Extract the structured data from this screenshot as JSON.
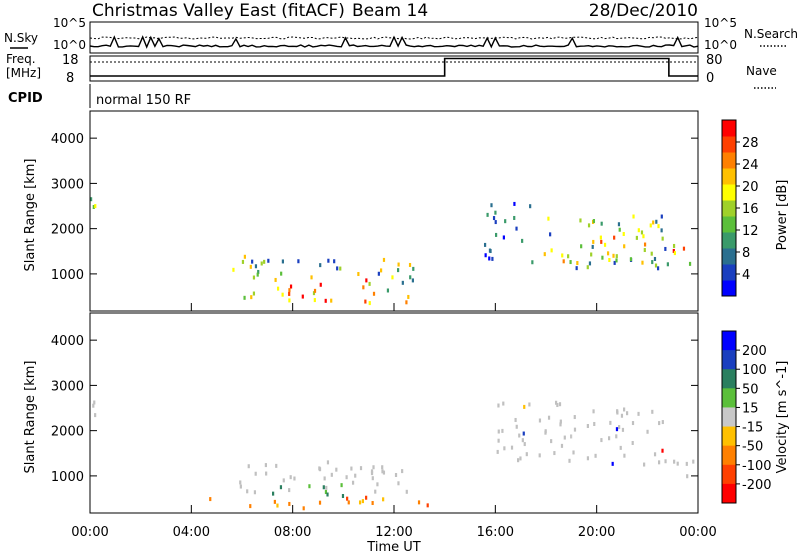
{
  "header": {
    "station": "Christmas Valley East (fitACF)",
    "beam": "Beam 14",
    "date": "28/Dec/2010"
  },
  "noise_panel": {
    "left_label": "N.Sky",
    "right_label": "N.Search",
    "left_ticks": [
      "10^5",
      "10^0"
    ],
    "right_ticks": [
      "10^5",
      "10^0"
    ]
  },
  "freq_panel": {
    "left_label_line1": "Freq.",
    "left_label_line2": "[MHz]",
    "right_label": "Nave",
    "left_ticks": [
      "18",
      "8"
    ],
    "right_ticks": [
      "80",
      "0"
    ],
    "freq_profile": [
      [
        0,
        14.0,
        10.0
      ],
      [
        14.0,
        22.85,
        17.0
      ],
      [
        22.85,
        24.0,
        10.0
      ]
    ]
  },
  "cpid": {
    "label": "CPID",
    "program": "normal 150 RF"
  },
  "colors": {
    "power": [
      "#0000ff",
      "#1a3fbf",
      "#2a6f8f",
      "#3a9a6a",
      "#5bbf3a",
      "#9fd12a",
      "#ffff00",
      "#ffc000",
      "#ff8000",
      "#ff4000",
      "#ff0000"
    ],
    "velocity": [
      "#0000ff",
      "#1a3fbf",
      "#2a7f5f",
      "#5bbf3a",
      "#c8c8c8",
      "#ffc000",
      "#ff8000",
      "#ff4000",
      "#ff0000"
    ],
    "ground_scatter": "#c0c0c0"
  },
  "chart_data": [
    {
      "type": "heatmap",
      "title": "",
      "xlabel": "",
      "ylabel": "Slant Range [km]",
      "x_ticks": [
        "00:00",
        "04:00",
        "08:00",
        "12:00",
        "16:00",
        "20:00",
        "00:00"
      ],
      "xlim_hours": [
        0,
        24
      ],
      "ylim_km": [
        180,
        4600
      ],
      "y_ticks": [
        1000,
        2000,
        3000,
        4000
      ],
      "colorbar": {
        "label": "Power [dB]",
        "range": [
          0,
          32
        ],
        "ticks": [
          4,
          8,
          12,
          16,
          20,
          24,
          28
        ]
      },
      "regions": [
        {
          "t0": 0.0,
          "t1": 0.5,
          "r0": 1800,
          "r1": 2700,
          "value": "mid"
        },
        {
          "t0": 4.8,
          "t1": 7.0,
          "r0": 900,
          "r1": 1400,
          "value": "mid"
        },
        {
          "t0": 6.0,
          "t1": 11.5,
          "r0": 300,
          "r1": 900,
          "value": "high"
        },
        {
          "t0": 6.5,
          "t1": 11.0,
          "r0": 900,
          "r1": 1300,
          "value": "mid"
        },
        {
          "t0": 11.0,
          "t1": 12.8,
          "r0": 400,
          "r1": 1300,
          "value": "mid"
        },
        {
          "t0": 12.0,
          "t1": 13.0,
          "r0": 300,
          "r1": 600,
          "value": "high"
        },
        {
          "t0": 15.5,
          "t1": 17.5,
          "r0": 1200,
          "r1": 2600,
          "value": "low"
        },
        {
          "t0": 17.5,
          "t1": 22.8,
          "r0": 1100,
          "r1": 2300,
          "value": "mid"
        },
        {
          "t0": 18.5,
          "t1": 22.0,
          "r0": 1200,
          "r1": 1800,
          "value": "high"
        },
        {
          "t0": 23.0,
          "t1": 24.0,
          "r0": 900,
          "r1": 1600,
          "value": "high"
        }
      ]
    },
    {
      "type": "heatmap",
      "title": "",
      "xlabel": "Time UT",
      "ylabel": "Slant Range [km]",
      "x_ticks": [
        "00:00",
        "04:00",
        "08:00",
        "12:00",
        "16:00",
        "20:00",
        "00:00"
      ],
      "xlim_hours": [
        0,
        24
      ],
      "ylim_km": [
        180,
        4600
      ],
      "y_ticks": [
        1000,
        2000,
        3000,
        4000
      ],
      "colorbar": {
        "label": "Velocity [m s^-1]",
        "ticks": [
          "200",
          "100",
          "50",
          "15",
          "-15",
          "-50",
          "-100",
          "-200"
        ]
      },
      "regions": [
        {
          "t0": 0.0,
          "t1": 0.5,
          "r0": 2000,
          "r1": 2700,
          "value": "gs"
        },
        {
          "t0": 5.0,
          "t1": 12.5,
          "r0": 600,
          "r1": 1300,
          "value": "gs"
        },
        {
          "t0": 4.5,
          "t1": 13.5,
          "r0": 250,
          "r1": 500,
          "value": "neg"
        },
        {
          "t0": 7.0,
          "t1": 10.5,
          "r0": 500,
          "r1": 800,
          "value": "pos"
        },
        {
          "t0": 16.0,
          "t1": 23.0,
          "r0": 1200,
          "r1": 2600,
          "value": "gs"
        },
        {
          "t0": 23.0,
          "t1": 24.0,
          "r0": 900,
          "r1": 1600,
          "value": "gs"
        }
      ]
    }
  ]
}
